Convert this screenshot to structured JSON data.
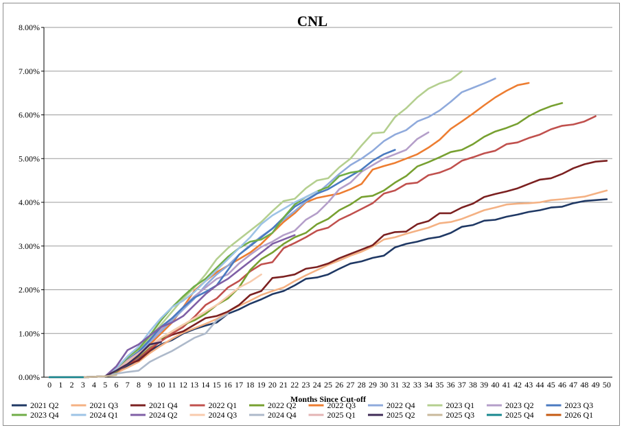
{
  "chart_data": {
    "type": "line",
    "title": "CNL",
    "xlabel": "Months Since Cut-off",
    "ylabel": "",
    "xlim": [
      0,
      50
    ],
    "ylim": [
      0,
      8
    ],
    "y_ticks": [
      "0.00%",
      "1.00%",
      "2.00%",
      "3.00%",
      "4.00%",
      "5.00%",
      "6.00%",
      "7.00%",
      "8.00%"
    ],
    "x_ticks": [
      0,
      1,
      2,
      3,
      4,
      5,
      6,
      7,
      8,
      9,
      10,
      11,
      12,
      13,
      14,
      15,
      16,
      17,
      18,
      19,
      20,
      21,
      22,
      23,
      24,
      25,
      26,
      27,
      28,
      29,
      30,
      31,
      32,
      33,
      34,
      35,
      36,
      37,
      38,
      39,
      40,
      41,
      42,
      43,
      44,
      45,
      46,
      47,
      48,
      49,
      50
    ],
    "grid": "horizontal",
    "legend_position": "bottom",
    "series": [
      {
        "name": "2021 Q2",
        "color": "#1f3864",
        "values": [
          0,
          0,
          0,
          0,
          0.01,
          0.02,
          0.1,
          0.25,
          0.4,
          0.6,
          0.75,
          0.85,
          1.0,
          1.1,
          1.18,
          1.25,
          1.45,
          1.55,
          1.68,
          1.78,
          1.9,
          1.97,
          2.1,
          2.25,
          2.28,
          2.35,
          2.48,
          2.6,
          2.65,
          2.73,
          2.78,
          2.97,
          3.05,
          3.1,
          3.17,
          3.21,
          3.3,
          3.44,
          3.48,
          3.58,
          3.6,
          3.67,
          3.72,
          3.78,
          3.82,
          3.88,
          3.9,
          3.98,
          4.03,
          4.05,
          4.07
        ]
      },
      {
        "name": "2021 Q3",
        "color": "#f4b183",
        "values": [
          0,
          0,
          0,
          0,
          0.01,
          0.02,
          0.1,
          0.22,
          0.35,
          0.55,
          0.72,
          0.88,
          1.02,
          1.12,
          1.22,
          1.33,
          1.5,
          1.63,
          1.75,
          1.88,
          1.97,
          2.05,
          2.2,
          2.33,
          2.45,
          2.57,
          2.67,
          2.78,
          2.87,
          2.99,
          3.15,
          3.2,
          3.28,
          3.35,
          3.42,
          3.52,
          3.55,
          3.62,
          3.72,
          3.82,
          3.88,
          3.95,
          3.97,
          3.98,
          4.0,
          4.05,
          4.07,
          4.1,
          4.13,
          4.2,
          4.27
        ]
      },
      {
        "name": "2021 Q4",
        "color": "#7b2020",
        "values": [
          0,
          0,
          0,
          0,
          0.01,
          0.02,
          0.15,
          0.3,
          0.38,
          0.6,
          0.85,
          0.97,
          1.05,
          1.2,
          1.35,
          1.4,
          1.5,
          1.65,
          1.88,
          1.97,
          2.27,
          2.3,
          2.35,
          2.48,
          2.52,
          2.6,
          2.72,
          2.82,
          2.92,
          3.02,
          3.25,
          3.32,
          3.33,
          3.5,
          3.57,
          3.75,
          3.75,
          3.88,
          3.97,
          4.12,
          4.19,
          4.25,
          4.32,
          4.42,
          4.52,
          4.55,
          4.65,
          4.78,
          4.87,
          4.93,
          4.95
        ]
      },
      {
        "name": "2022 Q1",
        "color": "#c0504d",
        "values": [
          0,
          0,
          0,
          0,
          0.01,
          0.02,
          0.12,
          0.3,
          0.45,
          0.65,
          0.82,
          1.0,
          1.15,
          1.38,
          1.65,
          1.8,
          2.05,
          2.2,
          2.42,
          2.58,
          2.63,
          2.95,
          3.07,
          3.2,
          3.35,
          3.42,
          3.6,
          3.72,
          3.85,
          3.98,
          4.2,
          4.27,
          4.42,
          4.45,
          4.62,
          4.68,
          4.78,
          4.95,
          5.03,
          5.12,
          5.18,
          5.33,
          5.37,
          5.47,
          5.55,
          5.67,
          5.75,
          5.78,
          5.85,
          5.97
        ]
      },
      {
        "name": "2022 Q2",
        "color": "#77a030",
        "values": [
          0,
          0,
          0,
          0,
          0.01,
          0.02,
          0.13,
          0.32,
          0.48,
          0.7,
          0.88,
          1.05,
          1.2,
          1.3,
          1.45,
          1.65,
          1.8,
          2.05,
          2.45,
          2.7,
          2.85,
          3.05,
          3.2,
          3.3,
          3.5,
          3.62,
          3.82,
          3.95,
          4.12,
          4.15,
          4.27,
          4.45,
          4.6,
          4.82,
          4.92,
          5.03,
          5.15,
          5.2,
          5.33,
          5.5,
          5.62,
          5.7,
          5.8,
          5.97,
          6.1,
          6.2,
          6.27
        ]
      },
      {
        "name": "2022 Q3",
        "color": "#ed7d31",
        "values": [
          0,
          0,
          0,
          0,
          0.01,
          0.02,
          0.15,
          0.35,
          0.5,
          0.75,
          1.0,
          1.25,
          1.6,
          1.98,
          2.2,
          2.4,
          2.55,
          2.7,
          2.85,
          3.05,
          3.3,
          3.55,
          3.75,
          4.0,
          4.1,
          4.15,
          4.2,
          4.3,
          4.42,
          4.75,
          4.83,
          4.9,
          5.0,
          5.1,
          5.25,
          5.43,
          5.68,
          5.85,
          6.03,
          6.22,
          6.4,
          6.55,
          6.68,
          6.73
        ]
      },
      {
        "name": "2022 Q4",
        "color": "#8faadc",
        "values": [
          0,
          0,
          0,
          0,
          0.01,
          0.02,
          0.16,
          0.38,
          0.55,
          0.8,
          1.05,
          1.3,
          1.55,
          1.8,
          2.1,
          2.35,
          2.55,
          2.8,
          3.02,
          3.22,
          3.4,
          3.6,
          3.8,
          4.02,
          4.2,
          4.42,
          4.65,
          4.85,
          5.0,
          5.18,
          5.4,
          5.55,
          5.65,
          5.85,
          5.95,
          6.1,
          6.3,
          6.52,
          6.62,
          6.72,
          6.83
        ]
      },
      {
        "name": "2023 Q1",
        "color": "#b4cf8f",
        "values": [
          0,
          0,
          0,
          0,
          0.01,
          0.02,
          0.15,
          0.38,
          0.6,
          0.9,
          1.2,
          1.5,
          1.8,
          2.05,
          2.35,
          2.7,
          2.95,
          3.15,
          3.35,
          3.55,
          3.8,
          4.03,
          4.08,
          4.32,
          4.5,
          4.55,
          4.8,
          5.0,
          5.3,
          5.58,
          5.6,
          5.95,
          6.15,
          6.4,
          6.6,
          6.72,
          6.8,
          7.0
        ]
      },
      {
        "name": "2023 Q2",
        "color": "#b49ec9",
        "values": [
          0,
          0,
          0,
          0,
          0.01,
          0.02,
          0.15,
          0.38,
          0.58,
          0.85,
          1.1,
          1.35,
          1.6,
          1.85,
          2.05,
          2.25,
          2.35,
          2.6,
          2.8,
          2.98,
          3.1,
          3.25,
          3.35,
          3.6,
          3.75,
          4.0,
          4.3,
          4.45,
          4.7,
          4.85,
          5.0,
          5.1,
          5.2,
          5.45,
          5.6
        ]
      },
      {
        "name": "2023 Q3",
        "color": "#4a7ac0",
        "values": [
          0,
          0,
          0,
          0,
          0.01,
          0.02,
          0.16,
          0.4,
          0.58,
          0.85,
          1.15,
          1.35,
          1.6,
          1.82,
          1.95,
          2.1,
          2.45,
          2.8,
          3.0,
          3.2,
          3.4,
          3.65,
          3.9,
          4.05,
          4.2,
          4.3,
          4.45,
          4.6,
          4.75,
          4.95,
          5.1,
          5.2
        ]
      },
      {
        "name": "2023 Q4",
        "color": "#70ad47",
        "values": [
          0,
          0,
          0,
          0,
          0.01,
          0.02,
          0.18,
          0.45,
          0.65,
          0.95,
          1.3,
          1.6,
          1.85,
          2.08,
          2.25,
          2.5,
          2.75,
          2.95,
          3.1,
          3.15,
          3.3,
          3.65,
          3.95,
          4.12,
          4.25,
          4.35,
          4.6,
          4.68,
          4.72
        ]
      },
      {
        "name": "2024 Q1",
        "color": "#9dc3e6",
        "values": [
          0,
          0,
          0,
          0,
          0.01,
          0.02,
          0.2,
          0.48,
          0.7,
          1.05,
          1.35,
          1.6,
          1.75,
          1.95,
          2.2,
          2.45,
          2.7,
          2.95,
          3.2,
          3.5,
          3.7,
          3.85,
          4.0,
          4.12,
          4.25
        ]
      },
      {
        "name": "2024 Q2",
        "color": "#7f5fa5",
        "values": [
          0,
          0,
          0,
          0,
          0.01,
          0.02,
          0.25,
          0.62,
          0.75,
          0.95,
          1.15,
          1.25,
          1.4,
          1.65,
          1.9,
          2.1,
          2.25,
          2.45,
          2.65,
          2.85,
          3.05,
          3.15,
          3.25
        ]
      },
      {
        "name": "2024 Q3",
        "color": "#f8cbad",
        "values": [
          0,
          0,
          0,
          0,
          0.01,
          0.02,
          0.15,
          0.35,
          0.5,
          0.72,
          0.9,
          1.05,
          1.2,
          1.35,
          1.5,
          1.65,
          1.85,
          2.05,
          2.18,
          2.35
        ]
      },
      {
        "name": "2024 Q4",
        "color": "#adb9ca",
        "values": [
          0,
          0,
          0,
          0,
          0.01,
          0.02,
          0.08,
          0.12,
          0.15,
          0.35,
          0.48,
          0.6,
          0.75,
          0.9,
          1.0,
          1.3,
          1.45
        ]
      },
      {
        "name": "2025 Q1",
        "color": "#e3b4b4",
        "values": [
          0,
          0,
          0,
          0,
          0.01,
          0.02,
          0.15,
          0.38,
          0.55,
          0.72,
          0.85
        ]
      },
      {
        "name": "2025 Q2",
        "color": "#3f2b56",
        "values": [
          0,
          0,
          0,
          0,
          0.01,
          0.02,
          0.15,
          0.3,
          0.5,
          0.75,
          0.8
        ]
      },
      {
        "name": "2025 Q3",
        "color": "#c9b99b",
        "values": [
          0,
          0,
          0,
          0,
          0.01,
          0.02,
          0.05
        ]
      },
      {
        "name": "2025 Q4",
        "color": "#17878f",
        "values": [
          0,
          0,
          0,
          0
        ]
      },
      {
        "name": "2026 Q1",
        "color": "#c55a11",
        "values": [
          0
        ]
      }
    ]
  }
}
